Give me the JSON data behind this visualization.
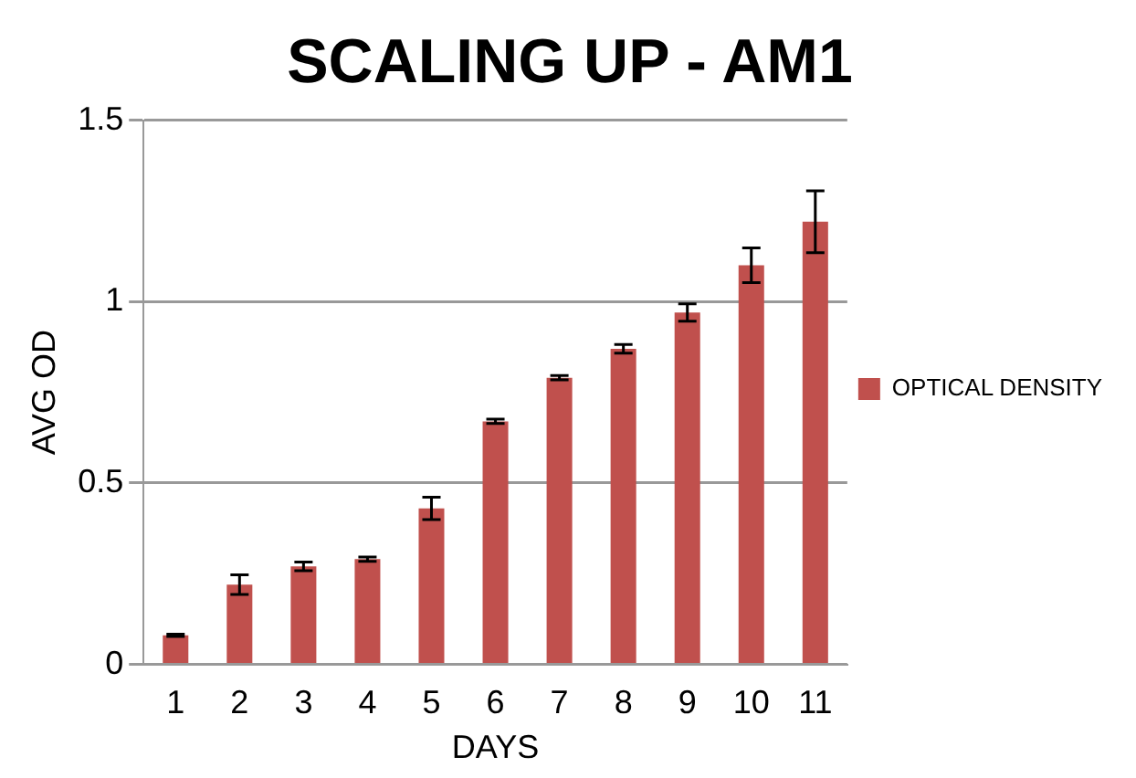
{
  "chart_data": {
    "type": "bar",
    "title": "SCALING UP - AM1",
    "xlabel": "DAYS",
    "ylabel": "AVG OD",
    "categories": [
      "1",
      "2",
      "3",
      "4",
      "5",
      "6",
      "7",
      "8",
      "9",
      "10",
      "11"
    ],
    "series": [
      {
        "name": "OPTICAL DENSITY",
        "color": "#c0504d",
        "values": [
          0.08,
          0.22,
          0.27,
          0.29,
          0.43,
          0.67,
          0.79,
          0.87,
          0.97,
          1.1,
          1.22
        ],
        "errors": [
          0.003,
          0.027,
          0.012,
          0.006,
          0.031,
          0.006,
          0.006,
          0.012,
          0.024,
          0.048,
          0.085
        ]
      }
    ],
    "ylim": [
      0,
      1.5
    ],
    "yticks": [
      0,
      0.5,
      1,
      1.5
    ],
    "grid": "y",
    "legend": "right"
  }
}
